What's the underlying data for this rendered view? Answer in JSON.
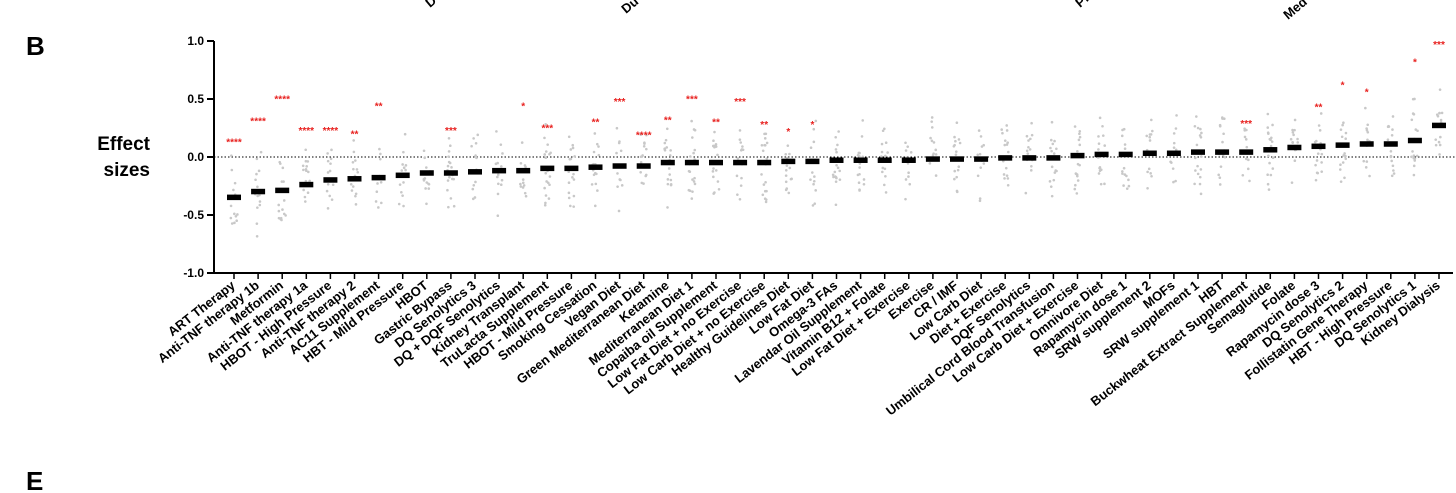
{
  "panels": {
    "upper_letter": "B",
    "lower_letter": "E"
  },
  "top_fragments": [
    "D",
    "Du",
    "Pr",
    "Med"
  ],
  "chart_data": {
    "type": "scatter",
    "ylabel_lines": [
      "Effect",
      "sizes"
    ],
    "ylim": [
      -1.0,
      1.0
    ],
    "yticks": [
      -1.0,
      -0.5,
      0.0,
      0.5,
      1.0
    ],
    "ytick_labels": [
      "-1.0",
      "-0.5",
      "0.0",
      "0.5",
      "1.0"
    ],
    "zero_line": "dotted",
    "mean_color": "#000000",
    "point_color": "#c8c8c8",
    "sig_color": "#e8201e",
    "categories": [
      "ART Therapy",
      "Anti-TNF therapy 1b",
      "Metformin",
      "Anti-TNF therapy 1a",
      "HBOT - High Pressure",
      "Anti-TNF therapy 2",
      "AC11 Supplement",
      "HBT - Mild Pressure",
      "HBOT",
      "Gastric Bypass",
      "DQ Senolytics 3",
      "DQ + DQF Senolytics",
      "Kidney Transplant",
      "TruLacta Supplement",
      "HBOT - Mild Pressure",
      "Smoking Cessation",
      "Vegan Diet",
      "Green Mediterranean Diet",
      "Ketamine",
      "Mediterranean Diet 1",
      "Copaiba oil Supplement",
      "Low Fat Diet + no Exercise",
      "Low Carb Diet + no Exercise",
      "Healthy Guidelines Diet",
      "Low Fat Diet",
      "Omega-3 FAs",
      "Lavendar Oil Supplement",
      "Vitamin B12 + Folate",
      "Low Fat Diet + Exercise",
      "Exercise",
      "CR / IMF",
      "Low Carb Diet",
      "Diet + Exercise",
      "DQF Senolytics",
      "Umbilical Cord Blood Transfusion",
      "Low Carb Diet + Exercise",
      "Omnivore Diet",
      "Rapamycin dose 1",
      "SRW supplement 2",
      "MOFs",
      "SRW supplement 1",
      "HBT",
      "Buckwheat Extract Supplement",
      "Semaglutide",
      "Folate",
      "Rapamycin dose 3",
      "DQ Senolytics 2",
      "Follistatin Gene Therapy",
      "HBT - High Pressure",
      "DQ Senolytics 1",
      "Kidney Dialysis"
    ],
    "mean_values": [
      -0.35,
      -0.3,
      -0.29,
      -0.24,
      -0.2,
      -0.19,
      -0.18,
      -0.16,
      -0.14,
      -0.14,
      -0.13,
      -0.12,
      -0.12,
      -0.1,
      -0.1,
      -0.09,
      -0.08,
      -0.08,
      -0.05,
      -0.05,
      -0.05,
      -0.05,
      -0.05,
      -0.04,
      -0.04,
      -0.03,
      -0.03,
      -0.03,
      -0.03,
      -0.02,
      -0.02,
      -0.02,
      -0.01,
      -0.01,
      -0.01,
      0.01,
      0.02,
      0.02,
      0.03,
      0.03,
      0.04,
      0.04,
      0.04,
      0.06,
      0.08,
      0.09,
      0.1,
      0.11,
      0.11,
      0.14,
      0.27
    ],
    "significance": [
      "****",
      "****",
      "****",
      "****",
      "****",
      "**",
      "**",
      "",
      "",
      "***",
      "",
      "",
      "*",
      "***",
      "",
      "**",
      "***",
      "****",
      "**",
      "***",
      "**",
      "***",
      "**",
      "*",
      "*",
      "",
      "",
      "",
      "",
      "",
      "",
      "",
      "",
      "",
      "",
      "",
      "",
      "",
      "",
      "",
      "",
      "",
      "***",
      "",
      "",
      "**",
      "*",
      "*",
      "",
      "*",
      "***"
    ],
    "sig_y": [
      0.1,
      0.28,
      0.47,
      0.2,
      0.2,
      0.17,
      0.41,
      0,
      0,
      0.2,
      0,
      0,
      0.41,
      0.22,
      0,
      0.27,
      0.45,
      0.16,
      0.29,
      0.47,
      0.27,
      0.45,
      0.25,
      0.19,
      0.25,
      0,
      0,
      0,
      0,
      0,
      0,
      0,
      0,
      0,
      0,
      0,
      0,
      0,
      0,
      0,
      0,
      0,
      0.26,
      0,
      0,
      0.4,
      0.59,
      0.53,
      0,
      0.79,
      0.94
    ]
  }
}
